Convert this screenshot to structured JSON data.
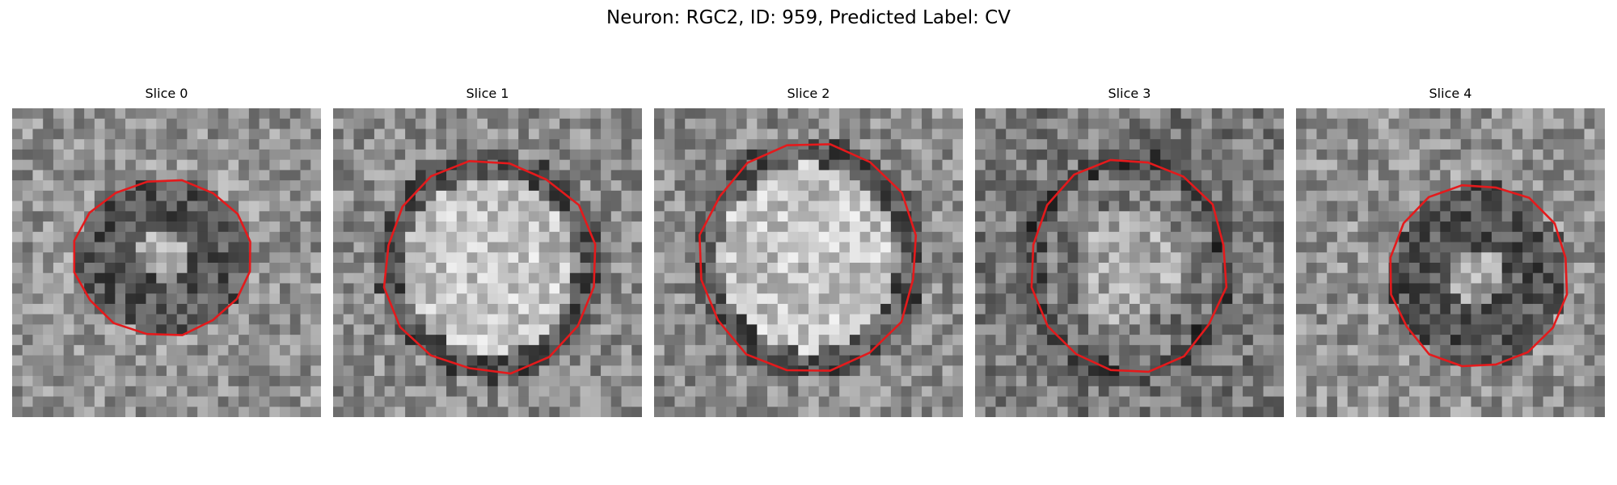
{
  "figure": {
    "title": "Neuron: RGC2, ID: 959, Predicted Label: CV"
  },
  "colors": {
    "contour": "#e41a1c",
    "background": "#ffffff"
  },
  "panels": [
    {
      "title": "Slice 0",
      "tone": "dark",
      "ring": "light"
    },
    {
      "title": "Slice 1",
      "tone": "bright",
      "ring": "dark"
    },
    {
      "title": "Slice 2",
      "tone": "bright",
      "ring": "dark"
    },
    {
      "title": "Slice 3",
      "tone": "mixed",
      "ring": "dark"
    },
    {
      "title": "Slice 4",
      "tone": "dark",
      "ring": "light"
    }
  ]
}
